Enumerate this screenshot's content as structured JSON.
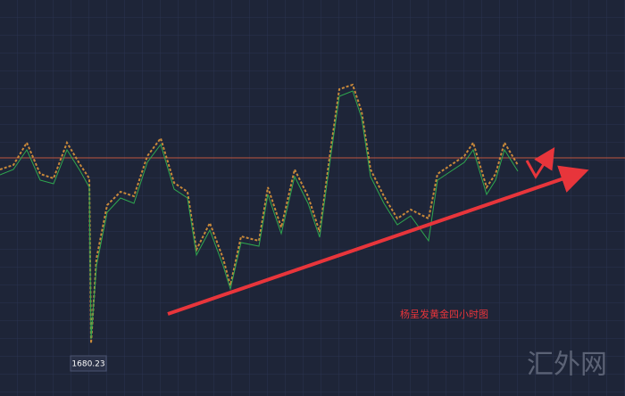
{
  "low_label": "1680.23",
  "caption": "杨呈发黄金四小时图",
  "watermark": "汇外网"
}
